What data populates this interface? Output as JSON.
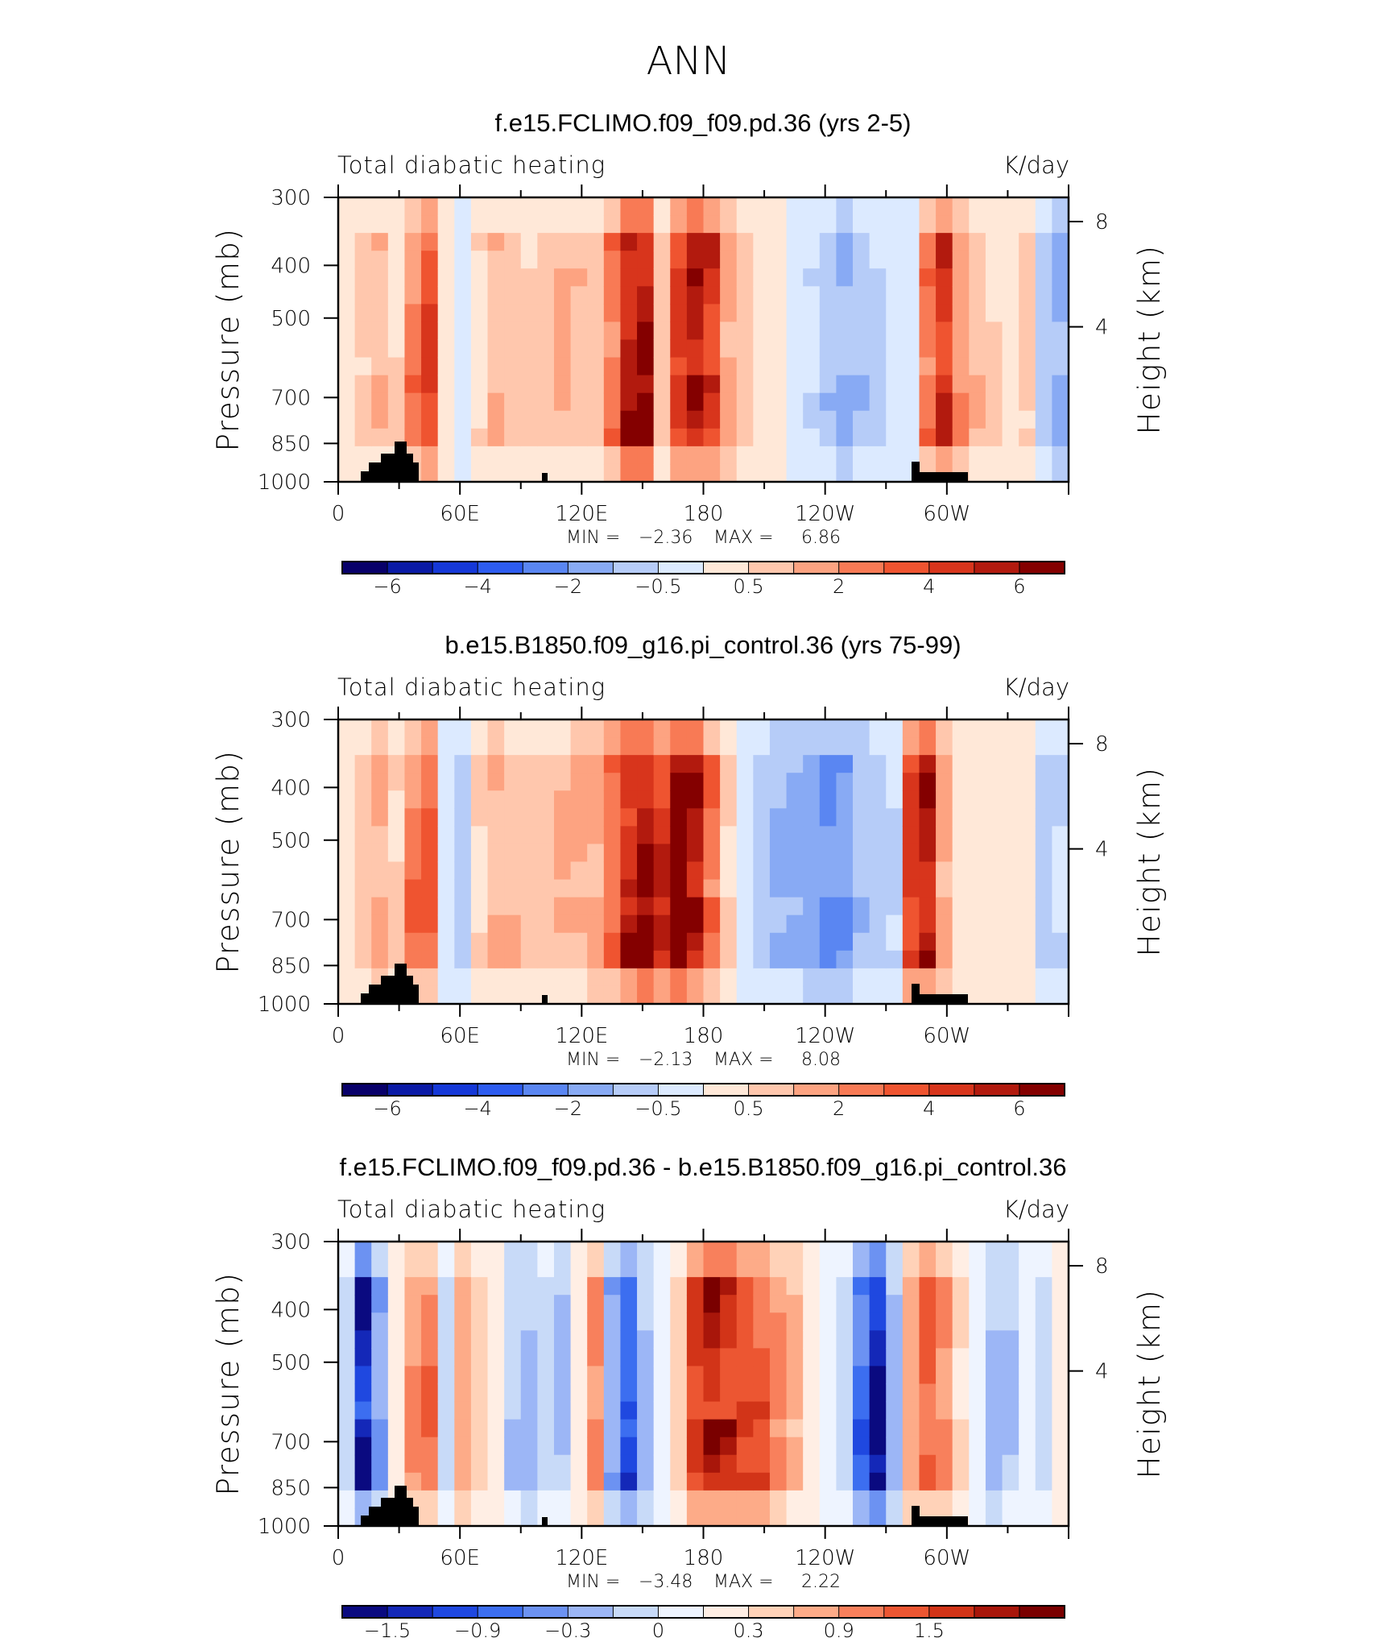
{
  "figure": {
    "season": "ANN",
    "colors": {
      "land": "#000000",
      "axis": "#000000"
    }
  },
  "chart_data": [
    {
      "type": "heatmap",
      "title": "f.e15.FCLIMO.f09_f09.pd.36 (yrs 2-5)",
      "variable_label": "Total diabatic heating",
      "units_label": "K/day",
      "ylabel": "Pressure (mb)",
      "ylabel_right": "Height (km)",
      "x_ticks": [
        "0",
        "60E",
        "120E",
        "180",
        "120W",
        "60W"
      ],
      "y_ticks": [
        "300",
        "400",
        "500",
        "700",
        "850",
        "1000"
      ],
      "y_right_ticks": [
        "8",
        "4"
      ],
      "min_label": "MIN =",
      "min_value": "−2.36",
      "max_label": "MAX =",
      "max_value": "6.86",
      "colorbar_labels": [
        "−6",
        "−4",
        "−2",
        "−0.5",
        "0.5",
        "2",
        "4",
        "6"
      ],
      "colorbar_colors": [
        "#08006a",
        "#0a1aa6",
        "#1538d8",
        "#2d5cf0",
        "#5a86f2",
        "#88aaf4",
        "#b6ccf8",
        "#dceaff",
        "#ffe8d8",
        "#ffc7ad",
        "#fda381",
        "#f87a55",
        "#ef5430",
        "#d8351c",
        "#b21a0e",
        "#840000"
      ],
      "profile": [
        0.1,
        0.6,
        0.9,
        0.5,
        1.6,
        2.2,
        0.1,
        -0.3,
        0.4,
        0.9,
        0.7,
        0.6,
        0.7,
        0.9,
        0.8,
        0.7,
        1.8,
        3.2,
        3.4,
        0.6,
        2.2,
        2.8,
        2.5,
        1.2,
        0.8,
        0.4,
        0.2,
        -0.1,
        -0.4,
        -0.8,
        -1.1,
        -0.9,
        -0.6,
        -0.3,
        -0.1,
        1.6,
        2.6,
        1.3,
        0.9,
        0.5,
        0.2,
        0.5,
        -0.6,
        -1.1
      ]
    },
    {
      "type": "heatmap",
      "title": "b.e15.B1850.f09_g16.pi_control.36 (yrs 75-99)",
      "variable_label": "Total diabatic heating",
      "units_label": "K/day",
      "ylabel": "Pressure (mb)",
      "ylabel_right": "Height (km)",
      "x_ticks": [
        "0",
        "60E",
        "120E",
        "180",
        "120W",
        "60W"
      ],
      "y_ticks": [
        "300",
        "400",
        "500",
        "700",
        "850",
        "1000"
      ],
      "y_right_ticks": [
        "8",
        "4"
      ],
      "min_label": "MIN =",
      "min_value": "−2.13",
      "max_label": "MAX =",
      "max_value": "8.08",
      "colorbar_labels": [
        "−6",
        "−4",
        "−2",
        "−0.5",
        "0.5",
        "2",
        "4",
        "6"
      ],
      "colorbar_colors": [
        "#08006a",
        "#0a1aa6",
        "#1538d8",
        "#2d5cf0",
        "#5a86f2",
        "#88aaf4",
        "#b6ccf8",
        "#dceaff",
        "#ffe8d8",
        "#ffc7ad",
        "#fda381",
        "#f87a55",
        "#ef5430",
        "#d8351c",
        "#b21a0e",
        "#840000"
      ],
      "profile": [
        0.2,
        0.8,
        1.2,
        0.6,
        1.8,
        2.0,
        -0.4,
        -0.6,
        0.5,
        1.0,
        0.9,
        0.8,
        0.8,
        0.9,
        1.0,
        1.1,
        2.0,
        3.2,
        3.6,
        2.6,
        3.4,
        3.0,
        1.9,
        0.6,
        -0.4,
        -0.8,
        -1.0,
        -1.0,
        -1.2,
        -1.6,
        -1.5,
        -1.0,
        -0.7,
        -0.5,
        2.4,
        3.0,
        1.2,
        0.4,
        0.3,
        0.2,
        0.1,
        0.0,
        -0.6,
        -0.5
      ]
    },
    {
      "type": "heatmap",
      "title": "f.e15.FCLIMO.f09_f09.pd.36 - b.e15.B1850.f09_g16.pi_control.36",
      "variable_label": "Total diabatic heating",
      "units_label": "K/day",
      "ylabel": "Pressure (mb)",
      "ylabel_right": "Height (km)",
      "x_ticks": [
        "0",
        "60E",
        "120E",
        "180",
        "120W",
        "60W"
      ],
      "y_ticks": [
        "300",
        "400",
        "500",
        "700",
        "850",
        "1000"
      ],
      "y_right_ticks": [
        "8",
        "4"
      ],
      "min_label": "MIN =",
      "min_value": "−3.48",
      "max_label": "MAX =",
      "max_value": "2.22",
      "colorbar_labels": [
        "−1.5",
        "−0.9",
        "−0.3",
        "0",
        "0.3",
        "0.9",
        "1.5"
      ],
      "colorbar_colors": [
        "#0a0a80",
        "#1428b8",
        "#1f48e0",
        "#3c6ef0",
        "#6c92f2",
        "#9cb6f6",
        "#c8daf8",
        "#eef4ff",
        "#ffeee4",
        "#ffd2b8",
        "#fdab88",
        "#f8805c",
        "#ec5632",
        "#d23418",
        "#a8160a",
        "#7a0000"
      ],
      "profile": [
        -0.3,
        -1.6,
        -0.8,
        0.2,
        0.8,
        0.9,
        -0.4,
        0.6,
        0.4,
        0.0,
        -0.5,
        -0.6,
        -0.4,
        -0.5,
        0.2,
        0.8,
        -0.7,
        -1.3,
        -0.6,
        -0.1,
        0.4,
        1.2,
        1.6,
        1.5,
        1.3,
        1.1,
        0.8,
        0.5,
        0.1,
        -0.1,
        -0.4,
        -1.2,
        -1.8,
        -0.6,
        0.6,
        1.0,
        0.8,
        0.3,
        -0.2,
        -0.6,
        -0.5,
        -0.2,
        -0.4,
        0.1
      ]
    }
  ]
}
